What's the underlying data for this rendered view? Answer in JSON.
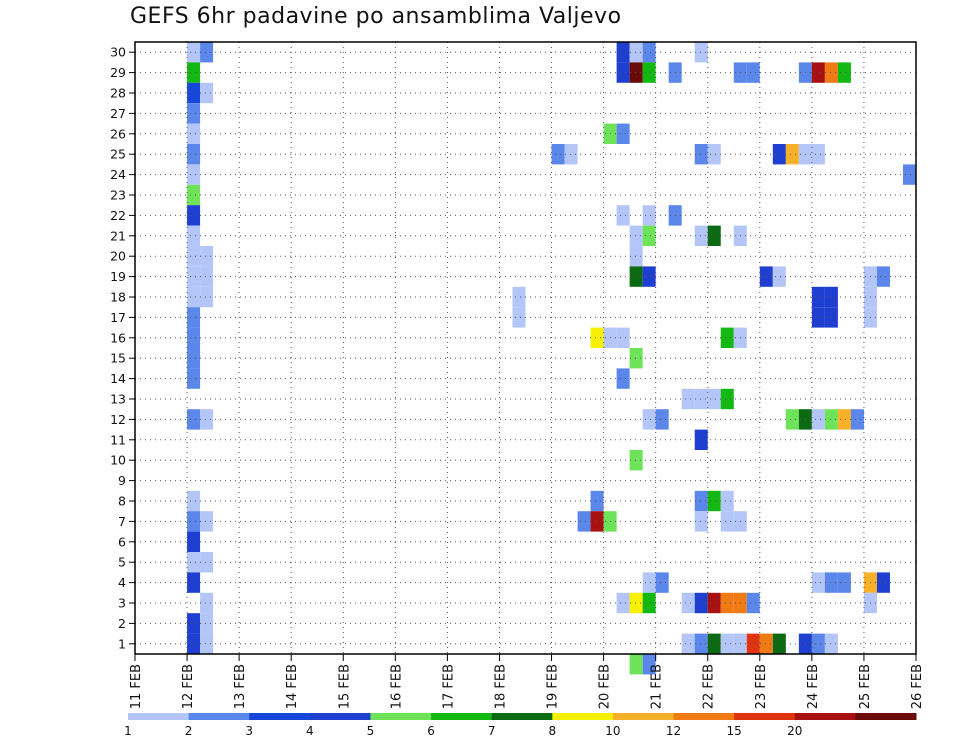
{
  "chart_data": {
    "type": "heatmap",
    "title": "GEFS 6hr padavine po ansamblima Valjevo",
    "x_ticks": [
      "11 FEB",
      "12 FEB",
      "13 FEB",
      "14 FEB",
      "15 FEB",
      "16 FEB",
      "17 FEB",
      "18 FEB",
      "19 FEB",
      "20 FEB",
      "21 FEB",
      "22 FEB",
      "23 FEB",
      "24 FEB",
      "25 FEB",
      "26 FEB"
    ],
    "y_ticks": [
      "1",
      "2",
      "3",
      "4",
      "5",
      "6",
      "7",
      "8",
      "9",
      "10",
      "11",
      "12",
      "13",
      "14",
      "15",
      "16",
      "17",
      "18",
      "19",
      "20",
      "21",
      "22",
      "23",
      "24",
      "25",
      "26",
      "27",
      "28",
      "29",
      "30"
    ],
    "x_range_days": [
      11,
      26
    ],
    "step_hours": 6,
    "grid": "dotted",
    "colorbar": {
      "levels": [
        1,
        2,
        3,
        4,
        5,
        6,
        7,
        8,
        10,
        12,
        15,
        20
      ],
      "labels": [
        "1",
        "2",
        "3",
        "4",
        "5",
        "6",
        "7",
        "8",
        "10",
        "12",
        "15",
        "20"
      ],
      "colors": [
        "#b3c6f7",
        "#5b87ea",
        "#1747d9",
        "#1e3fd0",
        "#6ee35a",
        "#13b813",
        "#0c6b12",
        "#f7f000",
        "#f6b128",
        "#f07b15",
        "#e0330f",
        "#a81111",
        "#6a0a0a"
      ]
    },
    "cells": [
      [
        "12",
        "30",
        0
      ],
      [
        "12.25",
        "30",
        1
      ],
      [
        "21.75",
        "30",
        0
      ],
      [
        "20.25",
        "30",
        3
      ],
      [
        "20.5",
        "30",
        0
      ],
      [
        "20.75",
        "30",
        1
      ],
      [
        "12",
        "29",
        5
      ],
      [
        "20.25",
        "29",
        3
      ],
      [
        "20.5",
        "29",
        12
      ],
      [
        "20.75",
        "29",
        5
      ],
      [
        "21.25",
        "29",
        1
      ],
      [
        "22.5",
        "29",
        1
      ],
      [
        "22.75",
        "29",
        1
      ],
      [
        "23.75",
        "29",
        1
      ],
      [
        "24",
        "29",
        11
      ],
      [
        "24.25",
        "29",
        9
      ],
      [
        "24.5",
        "29",
        5
      ],
      [
        "12",
        "28",
        2
      ],
      [
        "12.25",
        "28",
        0
      ],
      [
        "12",
        "27",
        1
      ],
      [
        "12",
        "26",
        0
      ],
      [
        "20",
        "26",
        4
      ],
      [
        "20.25",
        "26",
        1
      ],
      [
        "12",
        "25",
        1
      ],
      [
        "19",
        "25",
        1
      ],
      [
        "19.25",
        "25",
        0
      ],
      [
        "21.75",
        "25",
        1
      ],
      [
        "22",
        "25",
        0
      ],
      [
        "23.25",
        "25",
        3
      ],
      [
        "23.5",
        "25",
        8
      ],
      [
        "23.75",
        "25",
        0
      ],
      [
        "24",
        "25",
        0
      ],
      [
        "12",
        "24",
        0
      ],
      [
        "25.75",
        "24",
        1
      ],
      [
        "12",
        "23",
        4
      ],
      [
        "12",
        "22",
        3
      ],
      [
        "20.25",
        "22",
        0
      ],
      [
        "20.75",
        "22",
        0
      ],
      [
        "21.25",
        "22",
        1
      ],
      [
        "12",
        "21",
        0
      ],
      [
        "20.5",
        "21",
        0
      ],
      [
        "20.75",
        "21",
        4
      ],
      [
        "21.75",
        "21",
        0
      ],
      [
        "22",
        "21",
        6
      ],
      [
        "22.5",
        "21",
        0
      ],
      [
        "12",
        "20",
        0
      ],
      [
        "12.25",
        "20",
        0
      ],
      [
        "20.5",
        "20",
        0
      ],
      [
        "12",
        "19",
        0
      ],
      [
        "12.25",
        "19",
        0
      ],
      [
        "20.5",
        "19",
        6
      ],
      [
        "20.75",
        "19",
        3
      ],
      [
        "23",
        "19",
        3
      ],
      [
        "23.25",
        "19",
        0
      ],
      [
        "25",
        "19",
        0
      ],
      [
        "25.25",
        "19",
        1
      ],
      [
        "12",
        "18",
        0
      ],
      [
        "12.25",
        "18",
        0
      ],
      [
        "18.25",
        "18",
        0
      ],
      [
        "24",
        "18",
        3
      ],
      [
        "24.25",
        "18",
        3
      ],
      [
        "25",
        "18",
        0
      ],
      [
        "12",
        "17",
        1
      ],
      [
        "18.25",
        "17",
        0
      ],
      [
        "24",
        "17",
        3
      ],
      [
        "24.25",
        "17",
        3
      ],
      [
        "25",
        "17",
        0
      ],
      [
        "12",
        "16",
        1
      ],
      [
        "19.75",
        "16",
        7
      ],
      [
        "20",
        "16",
        0
      ],
      [
        "20.25",
        "16",
        0
      ],
      [
        "22.25",
        "16",
        5
      ],
      [
        "22.5",
        "16",
        0
      ],
      [
        "12",
        "15",
        1
      ],
      [
        "20.5",
        "15",
        4
      ],
      [
        "12",
        "14",
        1
      ],
      [
        "20.25",
        "14",
        1
      ],
      [
        "21.5",
        "13",
        0
      ],
      [
        "21.75",
        "13",
        0
      ],
      [
        "22",
        "13",
        0
      ],
      [
        "22.25",
        "13",
        5
      ],
      [
        "12",
        "12",
        1
      ],
      [
        "12.25",
        "12",
        0
      ],
      [
        "20.75",
        "12",
        0
      ],
      [
        "21",
        "12",
        1
      ],
      [
        "23.5",
        "12",
        4
      ],
      [
        "23.75",
        "12",
        6
      ],
      [
        "24",
        "12",
        0
      ],
      [
        "24.25",
        "12",
        4
      ],
      [
        "24.5",
        "12",
        8
      ],
      [
        "24.75",
        "12",
        1
      ],
      [
        "21.75",
        "11",
        3
      ],
      [
        "20.5",
        "10",
        4
      ],
      [
        "12",
        "8",
        0
      ],
      [
        "19.75",
        "8",
        1
      ],
      [
        "21.75",
        "8",
        1
      ],
      [
        "22",
        "8",
        5
      ],
      [
        "22.25",
        "8",
        0
      ],
      [
        "12",
        "7",
        1
      ],
      [
        "12.25",
        "7",
        0
      ],
      [
        "19.5",
        "7",
        1
      ],
      [
        "19.75",
        "7",
        11
      ],
      [
        "20",
        "7",
        4
      ],
      [
        "21.75",
        "7",
        0
      ],
      [
        "22.25",
        "7",
        0
      ],
      [
        "22.5",
        "7",
        0
      ],
      [
        "12",
        "6",
        3
      ],
      [
        "12",
        "5",
        0
      ],
      [
        "12.25",
        "5",
        0
      ],
      [
        "12",
        "4",
        3
      ],
      [
        "20.75",
        "4",
        0
      ],
      [
        "21",
        "4",
        1
      ],
      [
        "24",
        "4",
        0
      ],
      [
        "24.25",
        "4",
        1
      ],
      [
        "24.5",
        "4",
        1
      ],
      [
        "25",
        "4",
        8
      ],
      [
        "25.25",
        "4",
        3
      ],
      [
        "12.25",
        "3",
        0
      ],
      [
        "20.25",
        "3",
        0
      ],
      [
        "20.5",
        "3",
        7
      ],
      [
        "20.75",
        "3",
        5
      ],
      [
        "21.5",
        "3",
        0
      ],
      [
        "21.75",
        "3",
        3
      ],
      [
        "22",
        "3",
        11
      ],
      [
        "22.25",
        "3",
        9
      ],
      [
        "22.5",
        "3",
        9
      ],
      [
        "22.75",
        "3",
        1
      ],
      [
        "25",
        "3",
        0
      ],
      [
        "12",
        "2",
        3
      ],
      [
        "12.25",
        "2",
        0
      ],
      [
        "12",
        "1",
        3
      ],
      [
        "12.25",
        "1",
        0
      ],
      [
        "21.5",
        "1",
        0
      ],
      [
        "21.75",
        "1",
        1
      ],
      [
        "22",
        "1",
        6
      ],
      [
        "22.25",
        "1",
        0
      ],
      [
        "22.5",
        "1",
        0
      ],
      [
        "22.75",
        "1",
        10
      ],
      [
        "23",
        "1",
        9
      ],
      [
        "23.25",
        "1",
        6
      ],
      [
        "23.75",
        "1",
        3
      ],
      [
        "24",
        "1",
        1
      ],
      [
        "24.25",
        "1",
        0
      ],
      [
        "20.5",
        "0",
        4
      ],
      [
        "20.75",
        "0",
        1
      ]
    ]
  }
}
